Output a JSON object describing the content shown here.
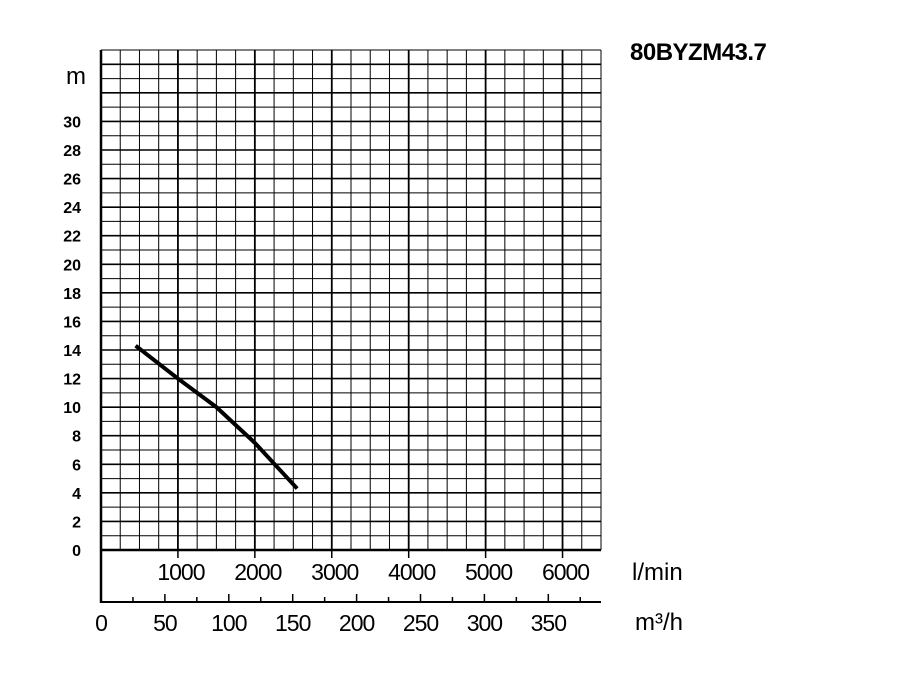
{
  "chart_data": {
    "type": "line",
    "title": "80BYZM43.7",
    "ylabel": "m",
    "xlabel_primary": "l/min",
    "xlabel_secondary": "m³/h",
    "ylim": [
      0,
      35
    ],
    "xlim": [
      0,
      6500
    ],
    "yticks": [
      "0",
      "2",
      "4",
      "6",
      "8",
      "10",
      "12",
      "14",
      "16",
      "18",
      "20",
      "22",
      "24",
      "26",
      "28",
      "30"
    ],
    "xticks_primary": [
      "1000",
      "2000",
      "3000",
      "4000",
      "5000",
      "6000"
    ],
    "xticks_secondary": [
      "0",
      "50",
      "100",
      "150",
      "200",
      "250",
      "300",
      "350"
    ],
    "grid": true,
    "series": [
      {
        "x": [
          450,
          1000,
          1500,
          2000,
          2550
        ],
        "y": [
          14.3,
          12.0,
          10.0,
          7.5,
          4.3
        ]
      }
    ]
  }
}
